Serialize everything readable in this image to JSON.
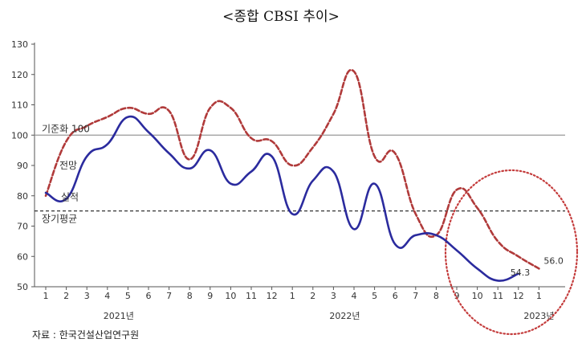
{
  "chart_data": {
    "type": "line",
    "title": "<종합 CBSI 추이>",
    "xlabel": "",
    "ylabel": "",
    "ylim": [
      50,
      130
    ],
    "yticks": [
      50,
      60,
      70,
      80,
      90,
      100,
      110,
      120,
      130
    ],
    "grid": false,
    "categories": [
      "1",
      "2",
      "3",
      "4",
      "5",
      "6",
      "7",
      "8",
      "9",
      "10",
      "11",
      "12",
      "1",
      "2",
      "3",
      "4",
      "5",
      "6",
      "7",
      "8",
      "9",
      "10",
      "11",
      "12",
      "1"
    ],
    "year_labels": [
      {
        "label": "2021년",
        "at_index": 3
      },
      {
        "label": "2022년",
        "at_index": 14
      },
      {
        "label": "2023년",
        "at_index": 24
      }
    ],
    "series": [
      {
        "name": "실적",
        "color": "#2b2b9e",
        "style": "solid",
        "values": [
          81,
          79,
          93,
          97,
          106,
          101,
          94,
          89,
          95,
          84,
          88,
          93,
          74,
          85,
          88,
          69,
          84,
          64,
          67,
          67,
          62,
          56,
          52,
          54.3,
          null
        ]
      },
      {
        "name": "전망",
        "color": "#b03a3a",
        "style": "dashed",
        "values": [
          80,
          98,
          103,
          106,
          109,
          107,
          108,
          92,
          109,
          109,
          99,
          98,
          90,
          96,
          107,
          121,
          93,
          94,
          74,
          67,
          82,
          76,
          65,
          60,
          56.0
        ]
      }
    ],
    "reference_lines": [
      {
        "name": "기준화 100",
        "value": 100,
        "style": "solid",
        "color": "#999999"
      },
      {
        "name": "장기평균",
        "value": 75,
        "style": "dashed",
        "color": "#333333"
      }
    ],
    "annotations": [
      {
        "text": "54.3",
        "series": "실적",
        "index": 23
      },
      {
        "text": "56.0",
        "series": "전망",
        "index": 24
      }
    ],
    "highlight": {
      "shape": "dotted-circle",
      "color": "#c43c3c"
    },
    "source": "자료 : 한국건설산업연구원"
  }
}
